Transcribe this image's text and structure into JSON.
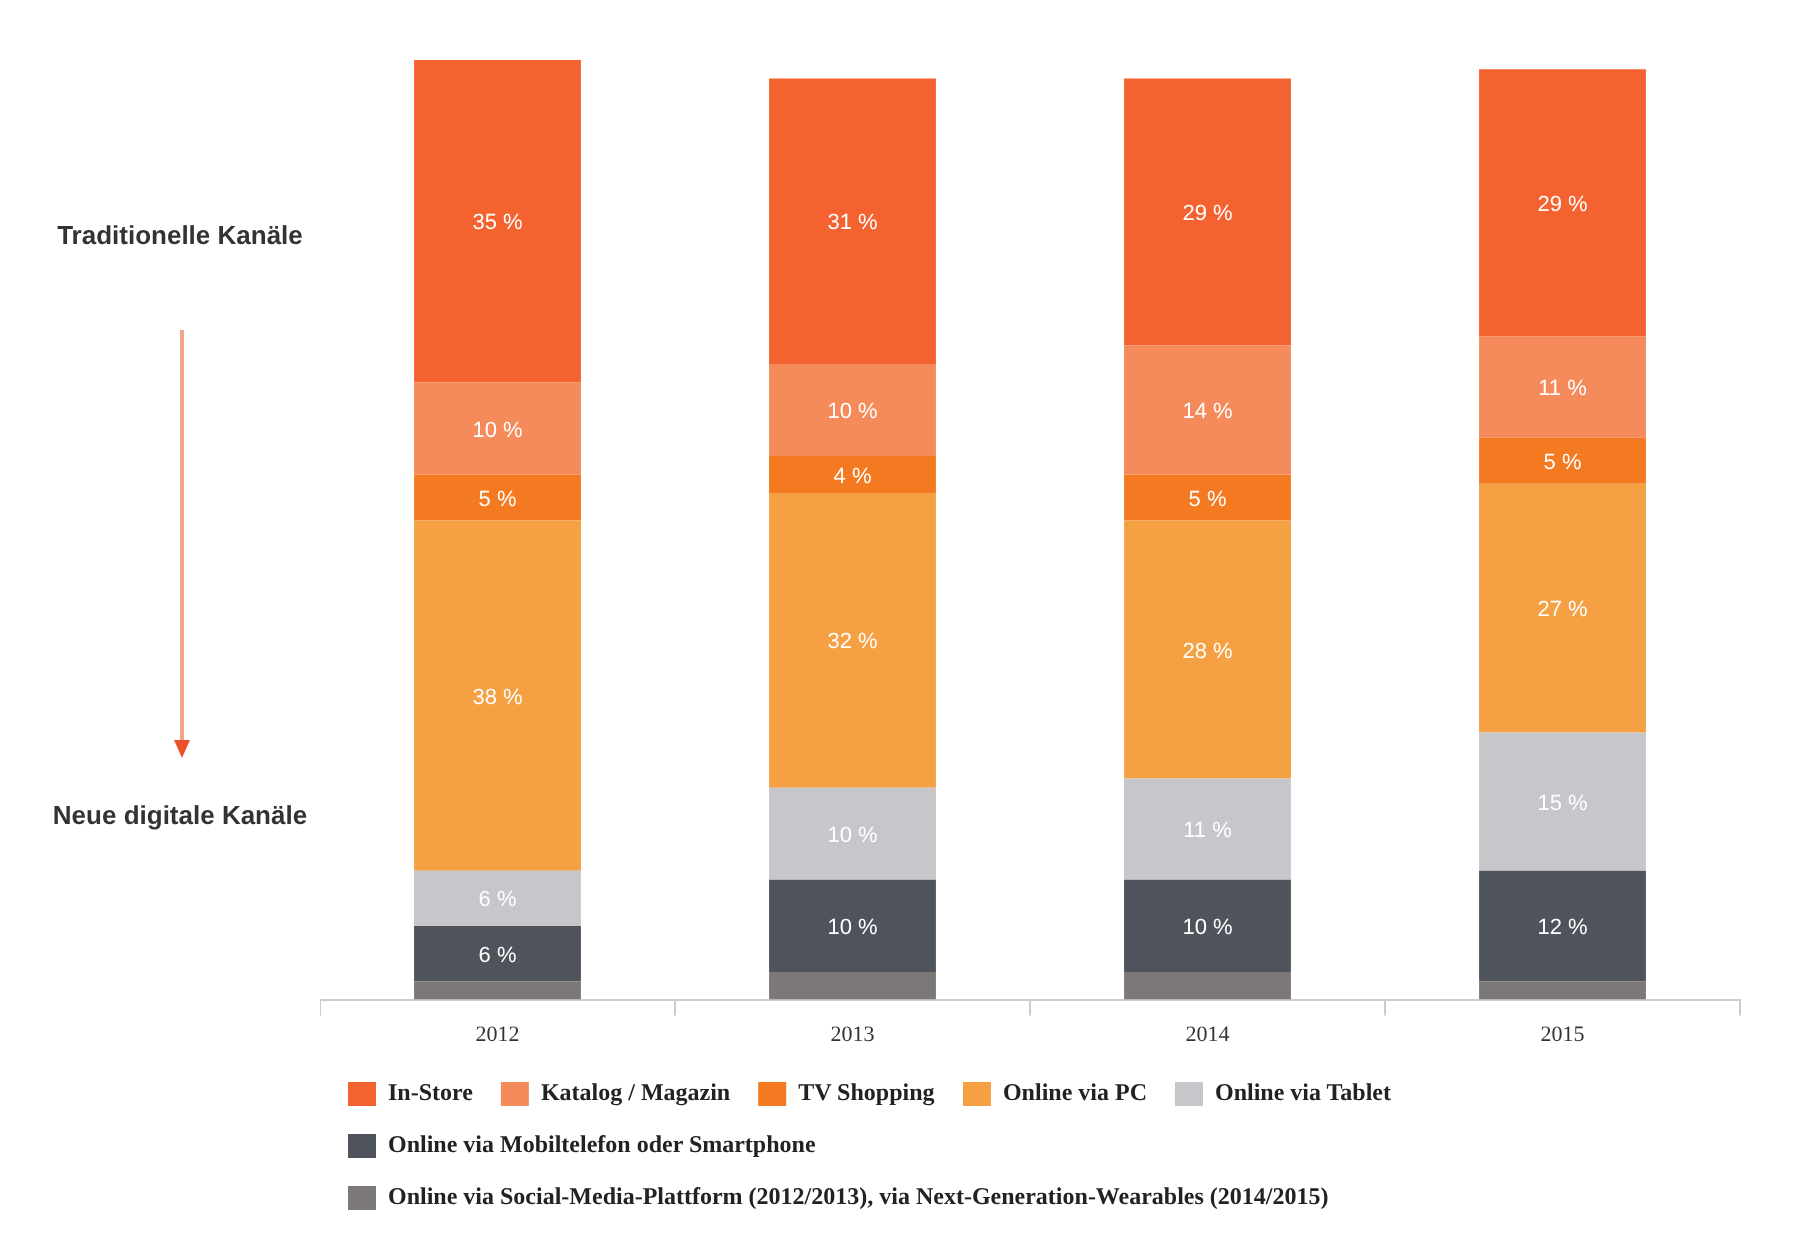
{
  "chart_data": {
    "type": "bar",
    "stacked": true,
    "categories": [
      "2012",
      "2013",
      "2014",
      "2015"
    ],
    "series": [
      {
        "name": "Online via Social-Media-Plattform (2012/2013), via Next-Generation-Wearables (2014/2015)",
        "color": "#7c7878",
        "values": [
          2,
          3,
          3,
          2
        ],
        "value_labels": [
          null,
          null,
          null,
          null
        ]
      },
      {
        "name": "Online via Mobiltelefon oder Smartphone",
        "color": "#4f535c",
        "values": [
          6,
          10,
          10,
          12
        ],
        "value_labels": [
          "6 %",
          "10 %",
          "10 %",
          "12 %"
        ]
      },
      {
        "name": "Online via Tablet",
        "color": "#c6c6cb",
        "values": [
          6,
          10,
          11,
          15
        ],
        "value_labels": [
          "6 %",
          "10 %",
          "11 %",
          "15 %"
        ]
      },
      {
        "name": "Online via PC",
        "color": "#f5a042",
        "values": [
          38,
          32,
          28,
          27
        ],
        "value_labels": [
          "38 %",
          "32 %",
          "28 %",
          "27 %"
        ]
      },
      {
        "name": "TV Shopping",
        "color": "#f47a22",
        "values": [
          5,
          4,
          5,
          5
        ],
        "value_labels": [
          "5 %",
          "4 %",
          "5 %",
          "5 %"
        ]
      },
      {
        "name": "Katalog / Magazin",
        "color": "#f58a5a",
        "values": [
          10,
          10,
          14,
          11
        ],
        "value_labels": [
          "10 %",
          "10 %",
          "14 %",
          "11 %"
        ]
      },
      {
        "name": "In-Store",
        "color": "#f4622f",
        "values": [
          35,
          31,
          29,
          29
        ],
        "value_labels": [
          "35 %",
          "31 %",
          "29 %",
          "29 %"
        ]
      }
    ],
    "annotations": [
      "Traditionelle Kanäle",
      "Neue digitale Kanäle"
    ],
    "legend": "bottom",
    "grid": false
  }
}
